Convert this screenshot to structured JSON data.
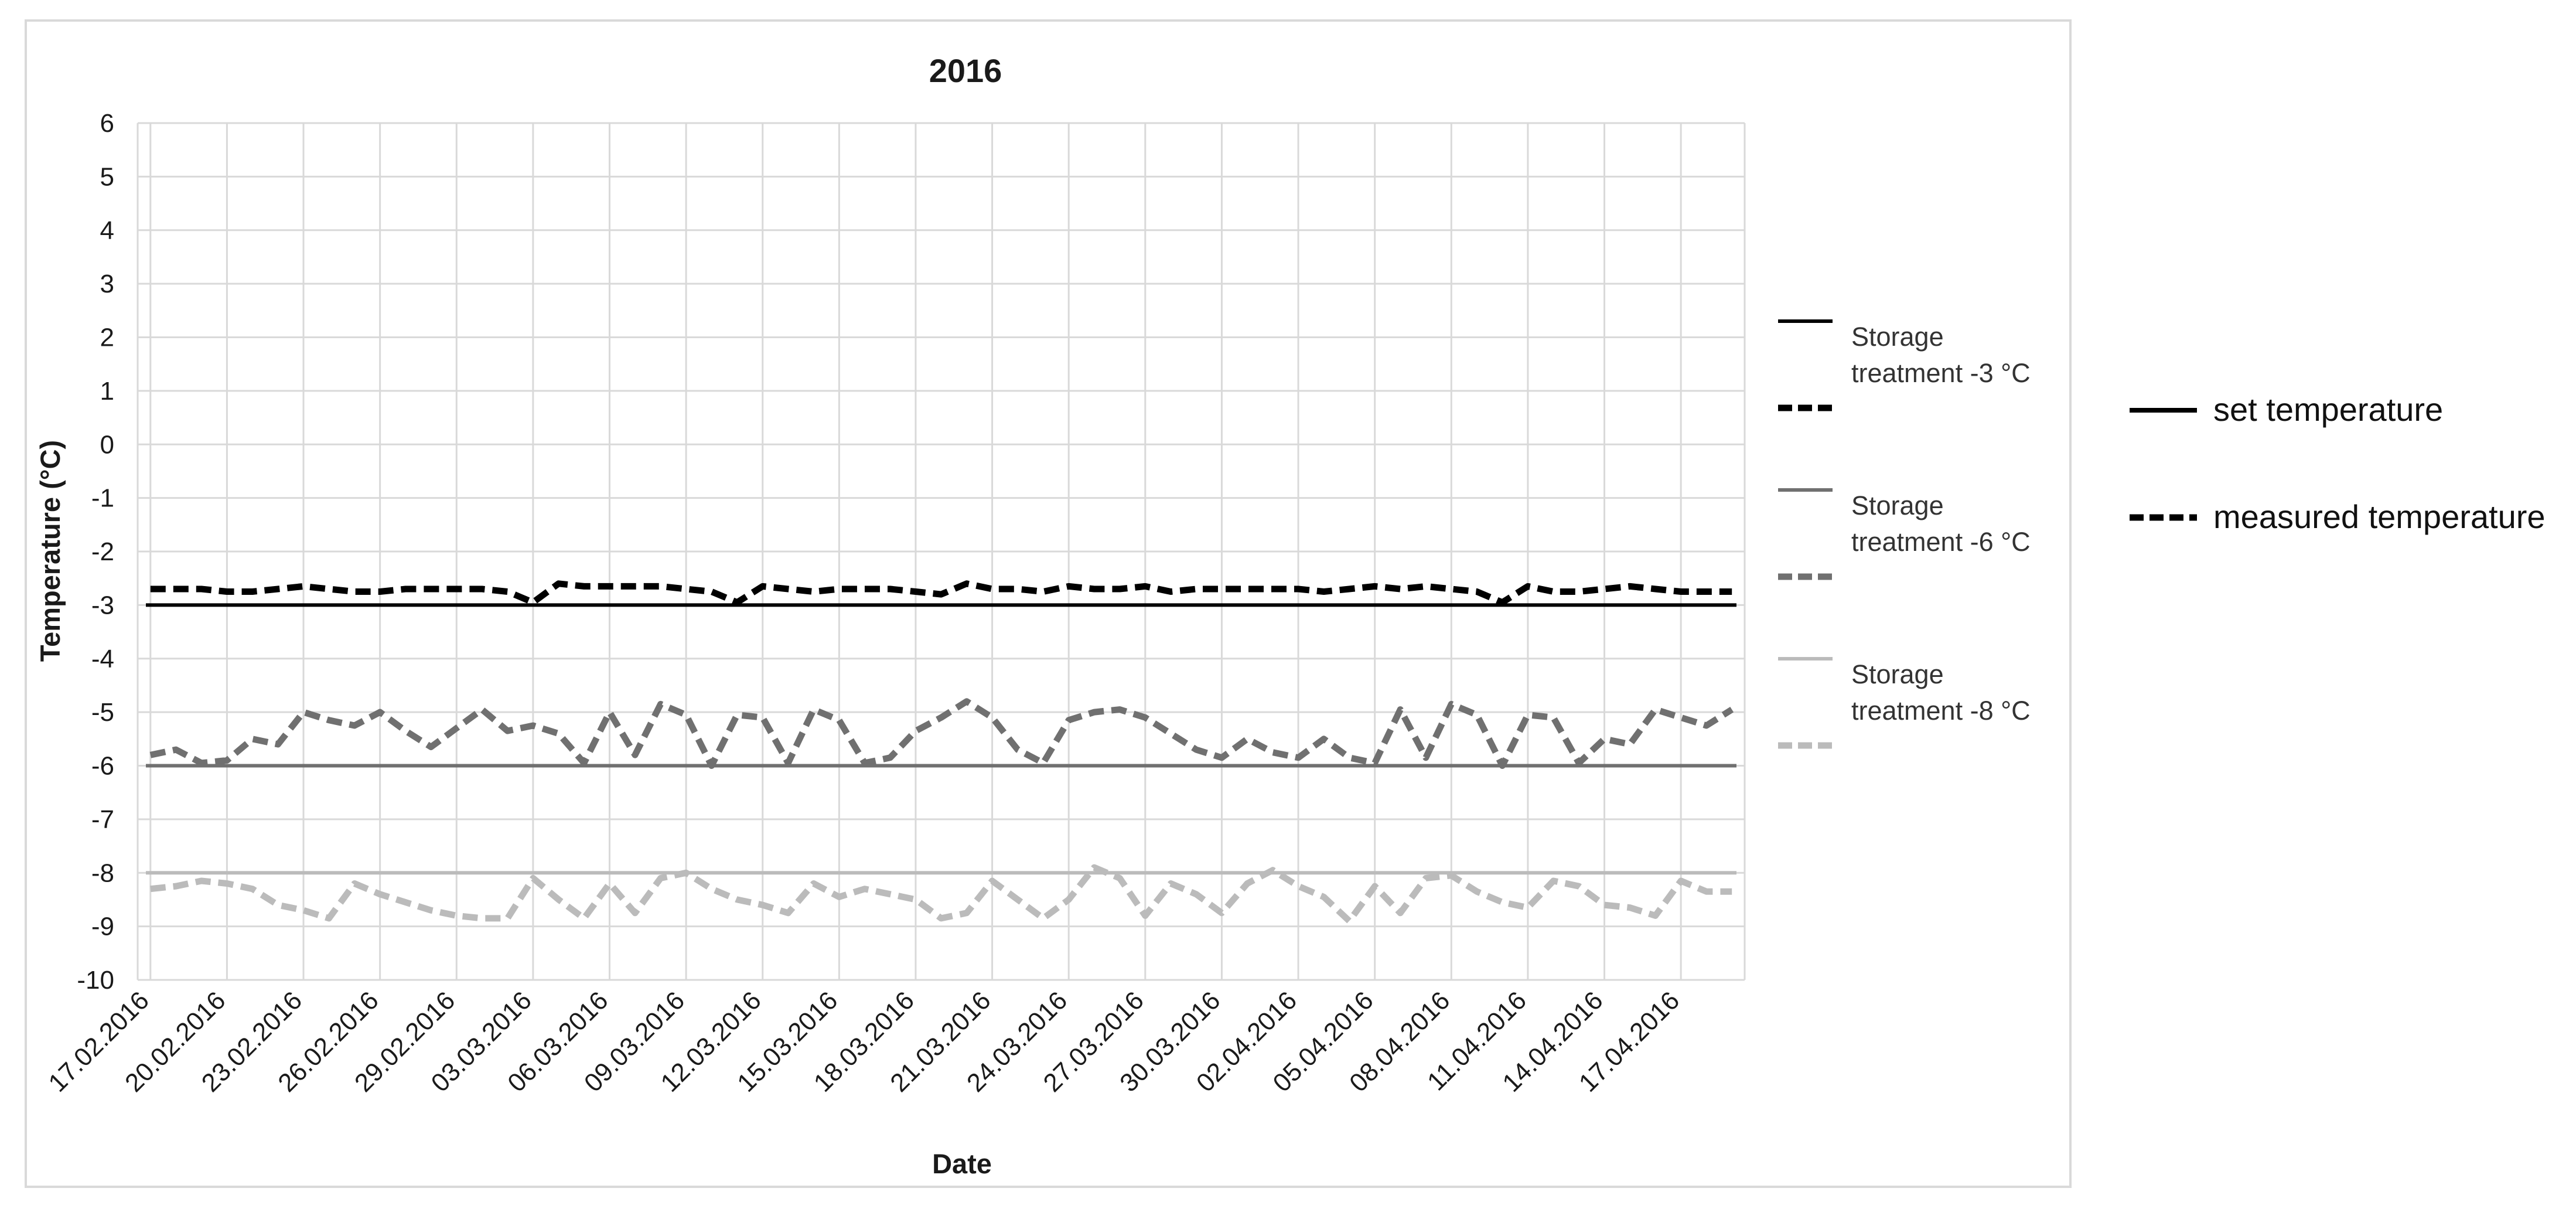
{
  "chart_data": {
    "type": "line",
    "title": "2016",
    "xlabel": "Date",
    "ylabel": "Temperature (°C)",
    "ylim": [
      -10,
      6
    ],
    "yticks": [
      6,
      5,
      4,
      3,
      2,
      1,
      0,
      -1,
      -2,
      -3,
      -4,
      -5,
      -6,
      -7,
      -8,
      -9,
      -10
    ],
    "grid": true,
    "x": [
      "17.02.2016",
      "18.02.2016",
      "19.02.2016",
      "20.02.2016",
      "21.02.2016",
      "22.02.2016",
      "23.02.2016",
      "24.02.2016",
      "25.02.2016",
      "26.02.2016",
      "27.02.2016",
      "28.02.2016",
      "29.02.2016",
      "01.03.2016",
      "02.03.2016",
      "03.03.2016",
      "04.03.2016",
      "05.03.2016",
      "06.03.2016",
      "07.03.2016",
      "08.03.2016",
      "09.03.2016",
      "10.03.2016",
      "11.03.2016",
      "12.03.2016",
      "13.03.2016",
      "14.03.2016",
      "15.03.2016",
      "16.03.2016",
      "17.03.2016",
      "18.03.2016",
      "19.03.2016",
      "20.03.2016",
      "21.03.2016",
      "22.03.2016",
      "23.03.2016",
      "24.03.2016",
      "25.03.2016",
      "26.03.2016",
      "27.03.2016",
      "28.03.2016",
      "29.03.2016",
      "30.03.2016",
      "31.03.2016",
      "01.04.2016",
      "02.04.2016",
      "03.04.2016",
      "04.04.2016",
      "05.04.2016",
      "06.04.2016",
      "07.04.2016",
      "08.04.2016",
      "09.04.2016",
      "10.04.2016",
      "11.04.2016",
      "12.04.2016",
      "13.04.2016",
      "14.04.2016",
      "15.04.2016",
      "16.04.2016",
      "17.04.2016",
      "18.04.2016",
      "19.04.2016"
    ],
    "xticks": [
      "17.02.2016",
      "20.02.2016",
      "23.02.2016",
      "26.02.2016",
      "29.02.2016",
      "03.03.2016",
      "06.03.2016",
      "09.03.2016",
      "12.03.2016",
      "15.03.2016",
      "18.03.2016",
      "21.03.2016",
      "24.03.2016",
      "27.03.2016",
      "30.03.2016",
      "02.04.2016",
      "05.04.2016",
      "08.04.2016",
      "11.04.2016",
      "14.04.2016",
      "17.04.2016"
    ],
    "series": [
      {
        "name": "Storage treatment -3 °C",
        "kind": "set",
        "color": "#000000",
        "dash": "solid",
        "constant": -3
      },
      {
        "name": "",
        "kind": "measured",
        "color": "#000000",
        "dash": "dashed",
        "values": [
          -2.7,
          -2.7,
          -2.7,
          -2.75,
          -2.75,
          -2.7,
          -2.65,
          -2.7,
          -2.75,
          -2.75,
          -2.7,
          -2.7,
          -2.7,
          -2.7,
          -2.75,
          -2.95,
          -2.6,
          -2.65,
          -2.65,
          -2.65,
          -2.65,
          -2.7,
          -2.75,
          -2.95,
          -2.65,
          -2.7,
          -2.75,
          -2.7,
          -2.7,
          -2.7,
          -2.75,
          -2.8,
          -2.6,
          -2.7,
          -2.7,
          -2.75,
          -2.65,
          -2.7,
          -2.7,
          -2.65,
          -2.75,
          -2.7,
          -2.7,
          -2.7,
          -2.7,
          -2.7,
          -2.75,
          -2.7,
          -2.65,
          -2.7,
          -2.65,
          -2.7,
          -2.75,
          -2.95,
          -2.65,
          -2.75,
          -2.75,
          -2.7,
          -2.65,
          -2.7,
          -2.75,
          -2.75,
          -2.75
        ]
      },
      {
        "name": "Storage treatment -6 °C",
        "kind": "set",
        "color": "#707070",
        "dash": "solid",
        "constant": -6
      },
      {
        "name": "",
        "kind": "measured",
        "color": "#707070",
        "dash": "dashed",
        "values": [
          -5.8,
          -5.7,
          -5.95,
          -5.9,
          -5.5,
          -5.6,
          -5.0,
          -5.15,
          -5.25,
          -5.0,
          -5.35,
          -5.65,
          -5.3,
          -4.95,
          -5.35,
          -5.25,
          -5.4,
          -5.95,
          -5.0,
          -5.8,
          -4.85,
          -5.05,
          -6.0,
          -5.05,
          -5.1,
          -5.95,
          -4.95,
          -5.15,
          -5.95,
          -5.85,
          -5.35,
          -5.1,
          -4.8,
          -5.1,
          -5.7,
          -5.95,
          -5.15,
          -5.0,
          -4.95,
          -5.1,
          -5.4,
          -5.7,
          -5.85,
          -5.5,
          -5.75,
          -5.85,
          -5.5,
          -5.85,
          -5.95,
          -4.95,
          -5.85,
          -4.85,
          -5.05,
          -6.0,
          -5.05,
          -5.1,
          -5.95,
          -5.5,
          -5.6,
          -4.95,
          -5.1,
          -5.25,
          -4.95
        ]
      },
      {
        "name": "Storage treatment -8 °C",
        "kind": "set",
        "color": "#bbbbbb",
        "dash": "solid",
        "constant": -8
      },
      {
        "name": "",
        "kind": "measured",
        "color": "#bbbbbb",
        "dash": "dashed",
        "values": [
          -8.3,
          -8.25,
          -8.15,
          -8.2,
          -8.3,
          -8.6,
          -8.7,
          -8.85,
          -8.2,
          -8.4,
          -8.55,
          -8.7,
          -8.8,
          -8.85,
          -8.85,
          -8.1,
          -8.5,
          -8.85,
          -8.2,
          -8.75,
          -8.1,
          -8.0,
          -8.3,
          -8.5,
          -8.6,
          -8.75,
          -8.2,
          -8.45,
          -8.3,
          -8.4,
          -8.5,
          -8.85,
          -8.75,
          -8.15,
          -8.5,
          -8.85,
          -8.5,
          -7.9,
          -8.1,
          -8.8,
          -8.2,
          -8.4,
          -8.75,
          -8.2,
          -7.95,
          -8.25,
          -8.45,
          -8.9,
          -8.25,
          -8.75,
          -8.1,
          -8.05,
          -8.35,
          -8.55,
          -8.65,
          -8.15,
          -8.25,
          -8.6,
          -8.65,
          -8.8,
          -8.15,
          -8.35,
          -8.35
        ]
      }
    ],
    "key": {
      "solid_label": "set temperature",
      "dashed_label": "measured temperature"
    }
  }
}
